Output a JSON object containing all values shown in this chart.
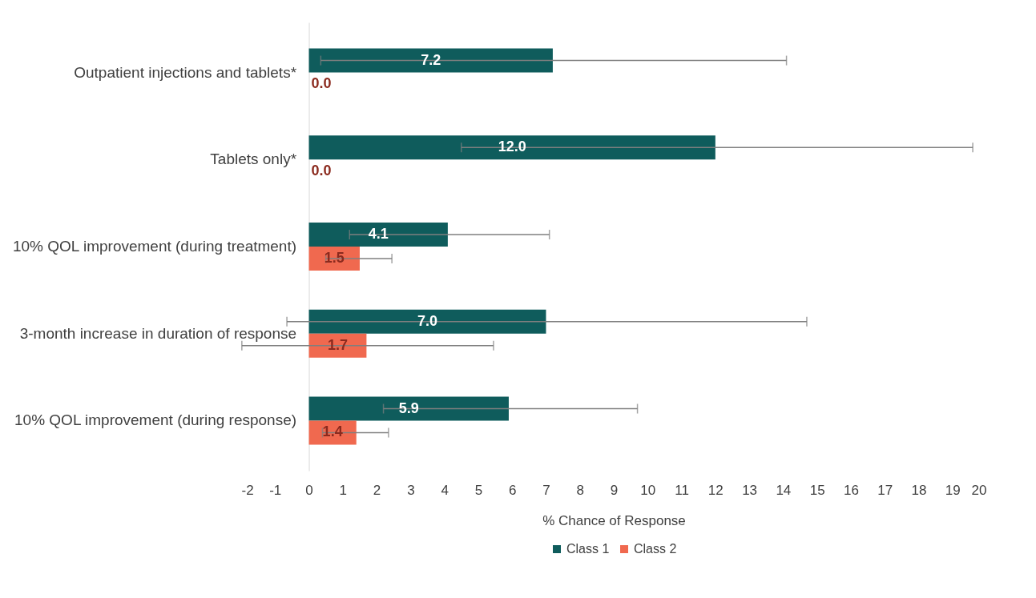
{
  "chart_data": {
    "type": "bar",
    "orientation": "horizontal",
    "xlabel": "% Chance of Response",
    "categories": [
      "Outpatient injections and tablets*",
      "Tablets only*",
      "10% QOL improvement (during treatment)",
      "3-month increase in duration of response",
      "10% QOL improvement (during response)"
    ],
    "series": [
      {
        "name": "Class 1",
        "color": "#0f5c5c",
        "values": [
          7.2,
          12.0,
          4.1,
          7.0,
          5.9
        ],
        "value_labels": [
          "7.2",
          "12.0",
          "4.1",
          "7.0",
          "5.9"
        ],
        "errors": [
          [
            0.35,
            14.1
          ],
          [
            4.5,
            19.6
          ],
          [
            1.2,
            7.1
          ],
          [
            -0.65,
            14.7
          ],
          [
            2.2,
            9.7
          ]
        ]
      },
      {
        "name": "Class 2",
        "color": "#f0694f",
        "values": [
          0.0,
          0.0,
          1.5,
          1.7,
          1.4
        ],
        "value_labels": [
          "0.0",
          "0.0",
          "1.5",
          "1.7",
          "1.4"
        ],
        "errors": [
          null,
          null,
          [
            0.5,
            2.45
          ],
          [
            -1.98,
            5.45
          ],
          [
            0.4,
            2.35
          ]
        ]
      }
    ],
    "xlim": [
      -2,
      20
    ],
    "xticks": [
      -2,
      -1,
      0,
      1,
      2,
      3,
      4,
      5,
      6,
      7,
      8,
      9,
      10,
      11,
      12,
      13,
      14,
      15,
      16,
      17,
      18,
      19,
      20
    ],
    "grid": false,
    "legend": "bottom"
  }
}
